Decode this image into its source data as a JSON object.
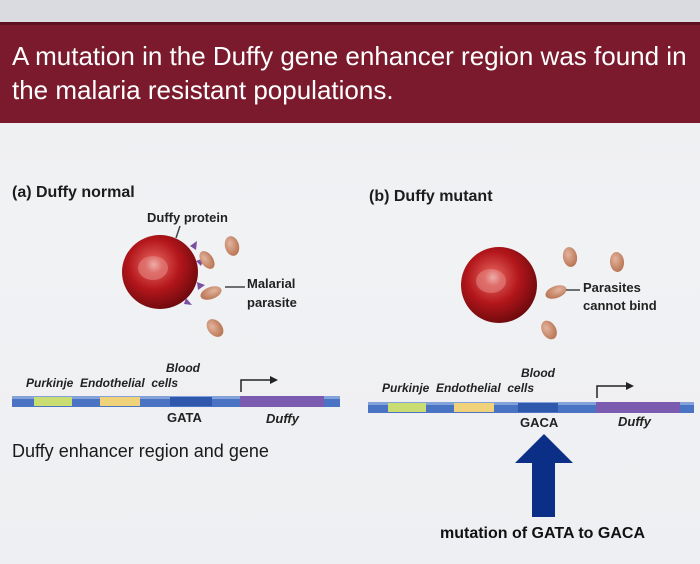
{
  "banner": {
    "title": "A mutation in the Duffy gene enhancer region was found in the malaria resistant populations."
  },
  "panel_a": {
    "title": "(a) Duffy normal",
    "protein_label": "Duffy protein",
    "parasite_label_line1": "Malarial",
    "parasite_label_line2": "parasite",
    "blood_label": "Blood",
    "cells_label": "Purkinje  Endothelial  cells",
    "site_label": "GATA",
    "gene_label": "Duffy",
    "caption": "Duffy enhancer region and gene"
  },
  "panel_b": {
    "title": "(b) Duffy mutant",
    "parasite_label_line1": "Parasites",
    "parasite_label_line2": "cannot bind",
    "blood_label": "Blood",
    "cells_label": "Purkinje  Endothelial  cells",
    "site_label": "GACA",
    "gene_label": "Duffy",
    "arrow_caption": "mutation of GATA to GACA"
  },
  "colors": {
    "banner": "#7a1a2c",
    "red_cell": "#b3161b",
    "parasite": "#c8866a",
    "duffy_protein": "#7b4fa0",
    "arrow": "#0b2f86",
    "segment_green": "#c9dd73",
    "segment_yellow": "#f0d27a",
    "segment_blue": "#3f6cc0",
    "segment_purple": "#7b5bb0"
  }
}
